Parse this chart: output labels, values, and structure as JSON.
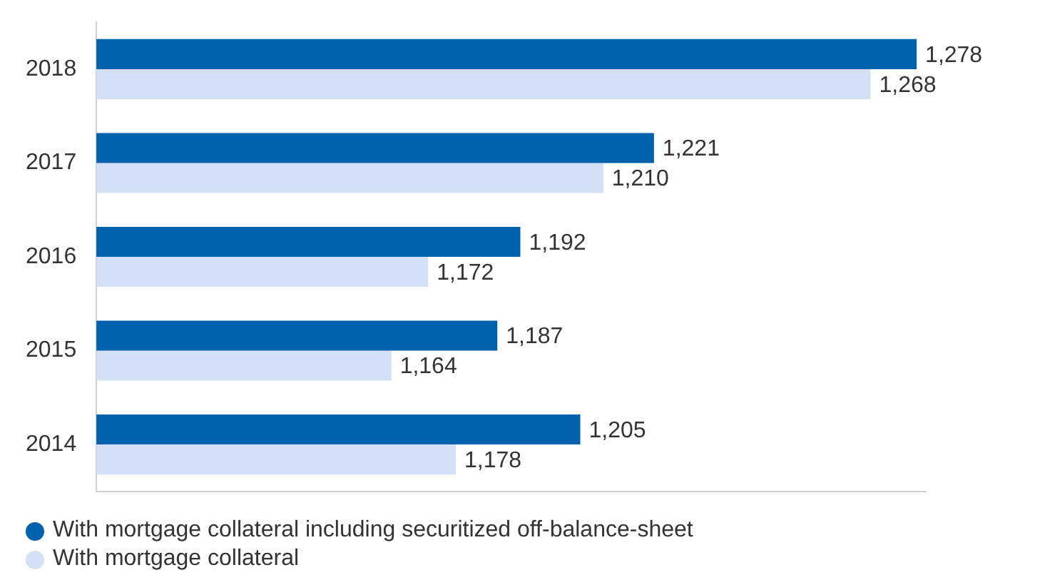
{
  "chart_data": {
    "type": "bar",
    "orientation": "horizontal",
    "categories": [
      "2018",
      "2017",
      "2016",
      "2015",
      "2014"
    ],
    "series": [
      {
        "name": "With mortgage collateral including securitized off-balance-sheet",
        "color": "#0061ad",
        "values": [
          1278,
          1221,
          1192,
          1187,
          1205
        ],
        "value_labels": [
          "1,278",
          "1,221",
          "1,192",
          "1,187",
          "1,205"
        ]
      },
      {
        "name": "With mortgage collateral",
        "color": "#d3e0f5",
        "values": [
          1268,
          1210,
          1172,
          1164,
          1178
        ],
        "value_labels": [
          "1,268",
          "1,210",
          "1,172",
          "1,164",
          "1,178"
        ]
      }
    ],
    "xlim": [
      1100,
      1280
    ],
    "tick_labels": "y",
    "legend": "bottom left"
  }
}
